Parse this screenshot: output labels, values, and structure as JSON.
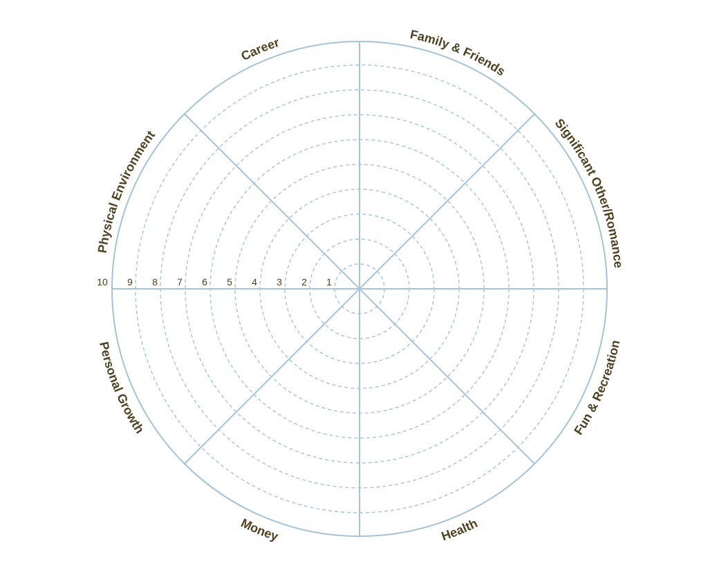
{
  "wheel": {
    "categories": [
      "Career",
      "Family & Friends",
      "Significant Other/Romance",
      "Fun & Recreation",
      "Health",
      "Money",
      "Personal Growth",
      "Physical Environment"
    ],
    "scale": [
      "1",
      "2",
      "3",
      "4",
      "5",
      "6",
      "7",
      "8",
      "9",
      "10"
    ],
    "colors": {
      "lines": "#a4c2d8",
      "labels": "#4e4120",
      "numbers": "#4a3e1e"
    }
  }
}
